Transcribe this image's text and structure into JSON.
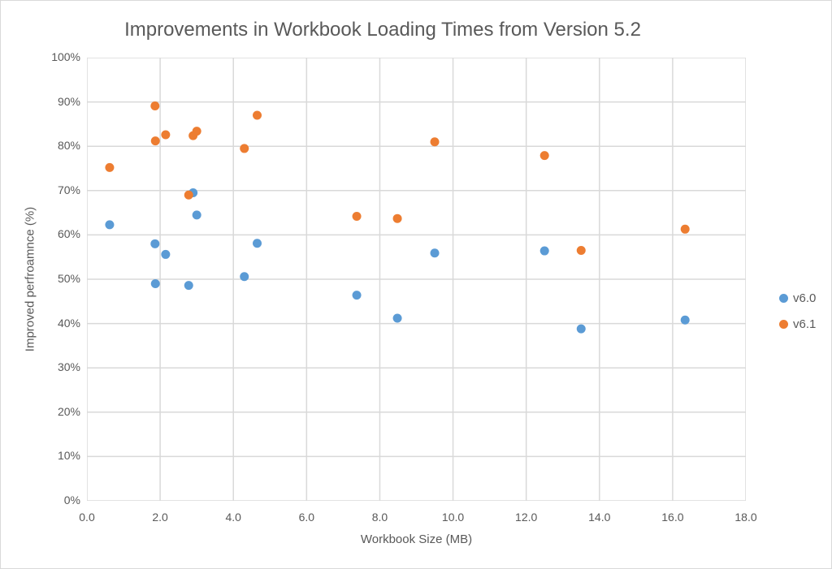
{
  "chart_data": {
    "type": "scatter",
    "title": "Improvements in Workbook Loading Times from Version 5.2",
    "xlabel": "Workbook Size (MB)",
    "ylabel": "Improved perfroamnce (%)",
    "xlim": [
      0,
      18
    ],
    "ylim": [
      0,
      100
    ],
    "x_ticks": [
      "0.0",
      "2.0",
      "4.0",
      "6.0",
      "8.0",
      "10.0",
      "12.0",
      "14.0",
      "16.0",
      "18.0"
    ],
    "y_ticks": [
      "0%",
      "10%",
      "20%",
      "30%",
      "40%",
      "50%",
      "60%",
      "70%",
      "80%",
      "90%",
      "100%"
    ],
    "grid": true,
    "legend_position": "right",
    "series": [
      {
        "name": "v6.0",
        "color": "#5b9bd5",
        "points": [
          [
            0.62,
            62.3
          ],
          [
            1.86,
            58.0
          ],
          [
            1.87,
            49.0
          ],
          [
            2.15,
            55.6
          ],
          [
            2.78,
            48.6
          ],
          [
            2.9,
            69.5
          ],
          [
            3.0,
            64.5
          ],
          [
            4.3,
            50.6
          ],
          [
            4.65,
            58.1
          ],
          [
            7.37,
            46.4
          ],
          [
            8.48,
            41.2
          ],
          [
            9.5,
            55.9
          ],
          [
            12.5,
            56.4
          ],
          [
            13.5,
            38.8
          ],
          [
            16.34,
            40.8
          ]
        ]
      },
      {
        "name": "v6.1",
        "color": "#ed7d31",
        "points": [
          [
            0.62,
            75.2
          ],
          [
            1.86,
            89.1
          ],
          [
            1.87,
            81.2
          ],
          [
            2.15,
            82.6
          ],
          [
            2.78,
            69.0
          ],
          [
            2.9,
            82.4
          ],
          [
            3.0,
            83.4
          ],
          [
            4.3,
            79.5
          ],
          [
            4.65,
            87.0
          ],
          [
            7.37,
            64.2
          ],
          [
            8.48,
            63.7
          ],
          [
            9.5,
            81.0
          ],
          [
            12.5,
            77.9
          ],
          [
            13.5,
            56.5
          ],
          [
            16.34,
            61.3
          ]
        ]
      }
    ]
  },
  "colors": {
    "grid": "#d9d9d9",
    "text": "#595959"
  }
}
